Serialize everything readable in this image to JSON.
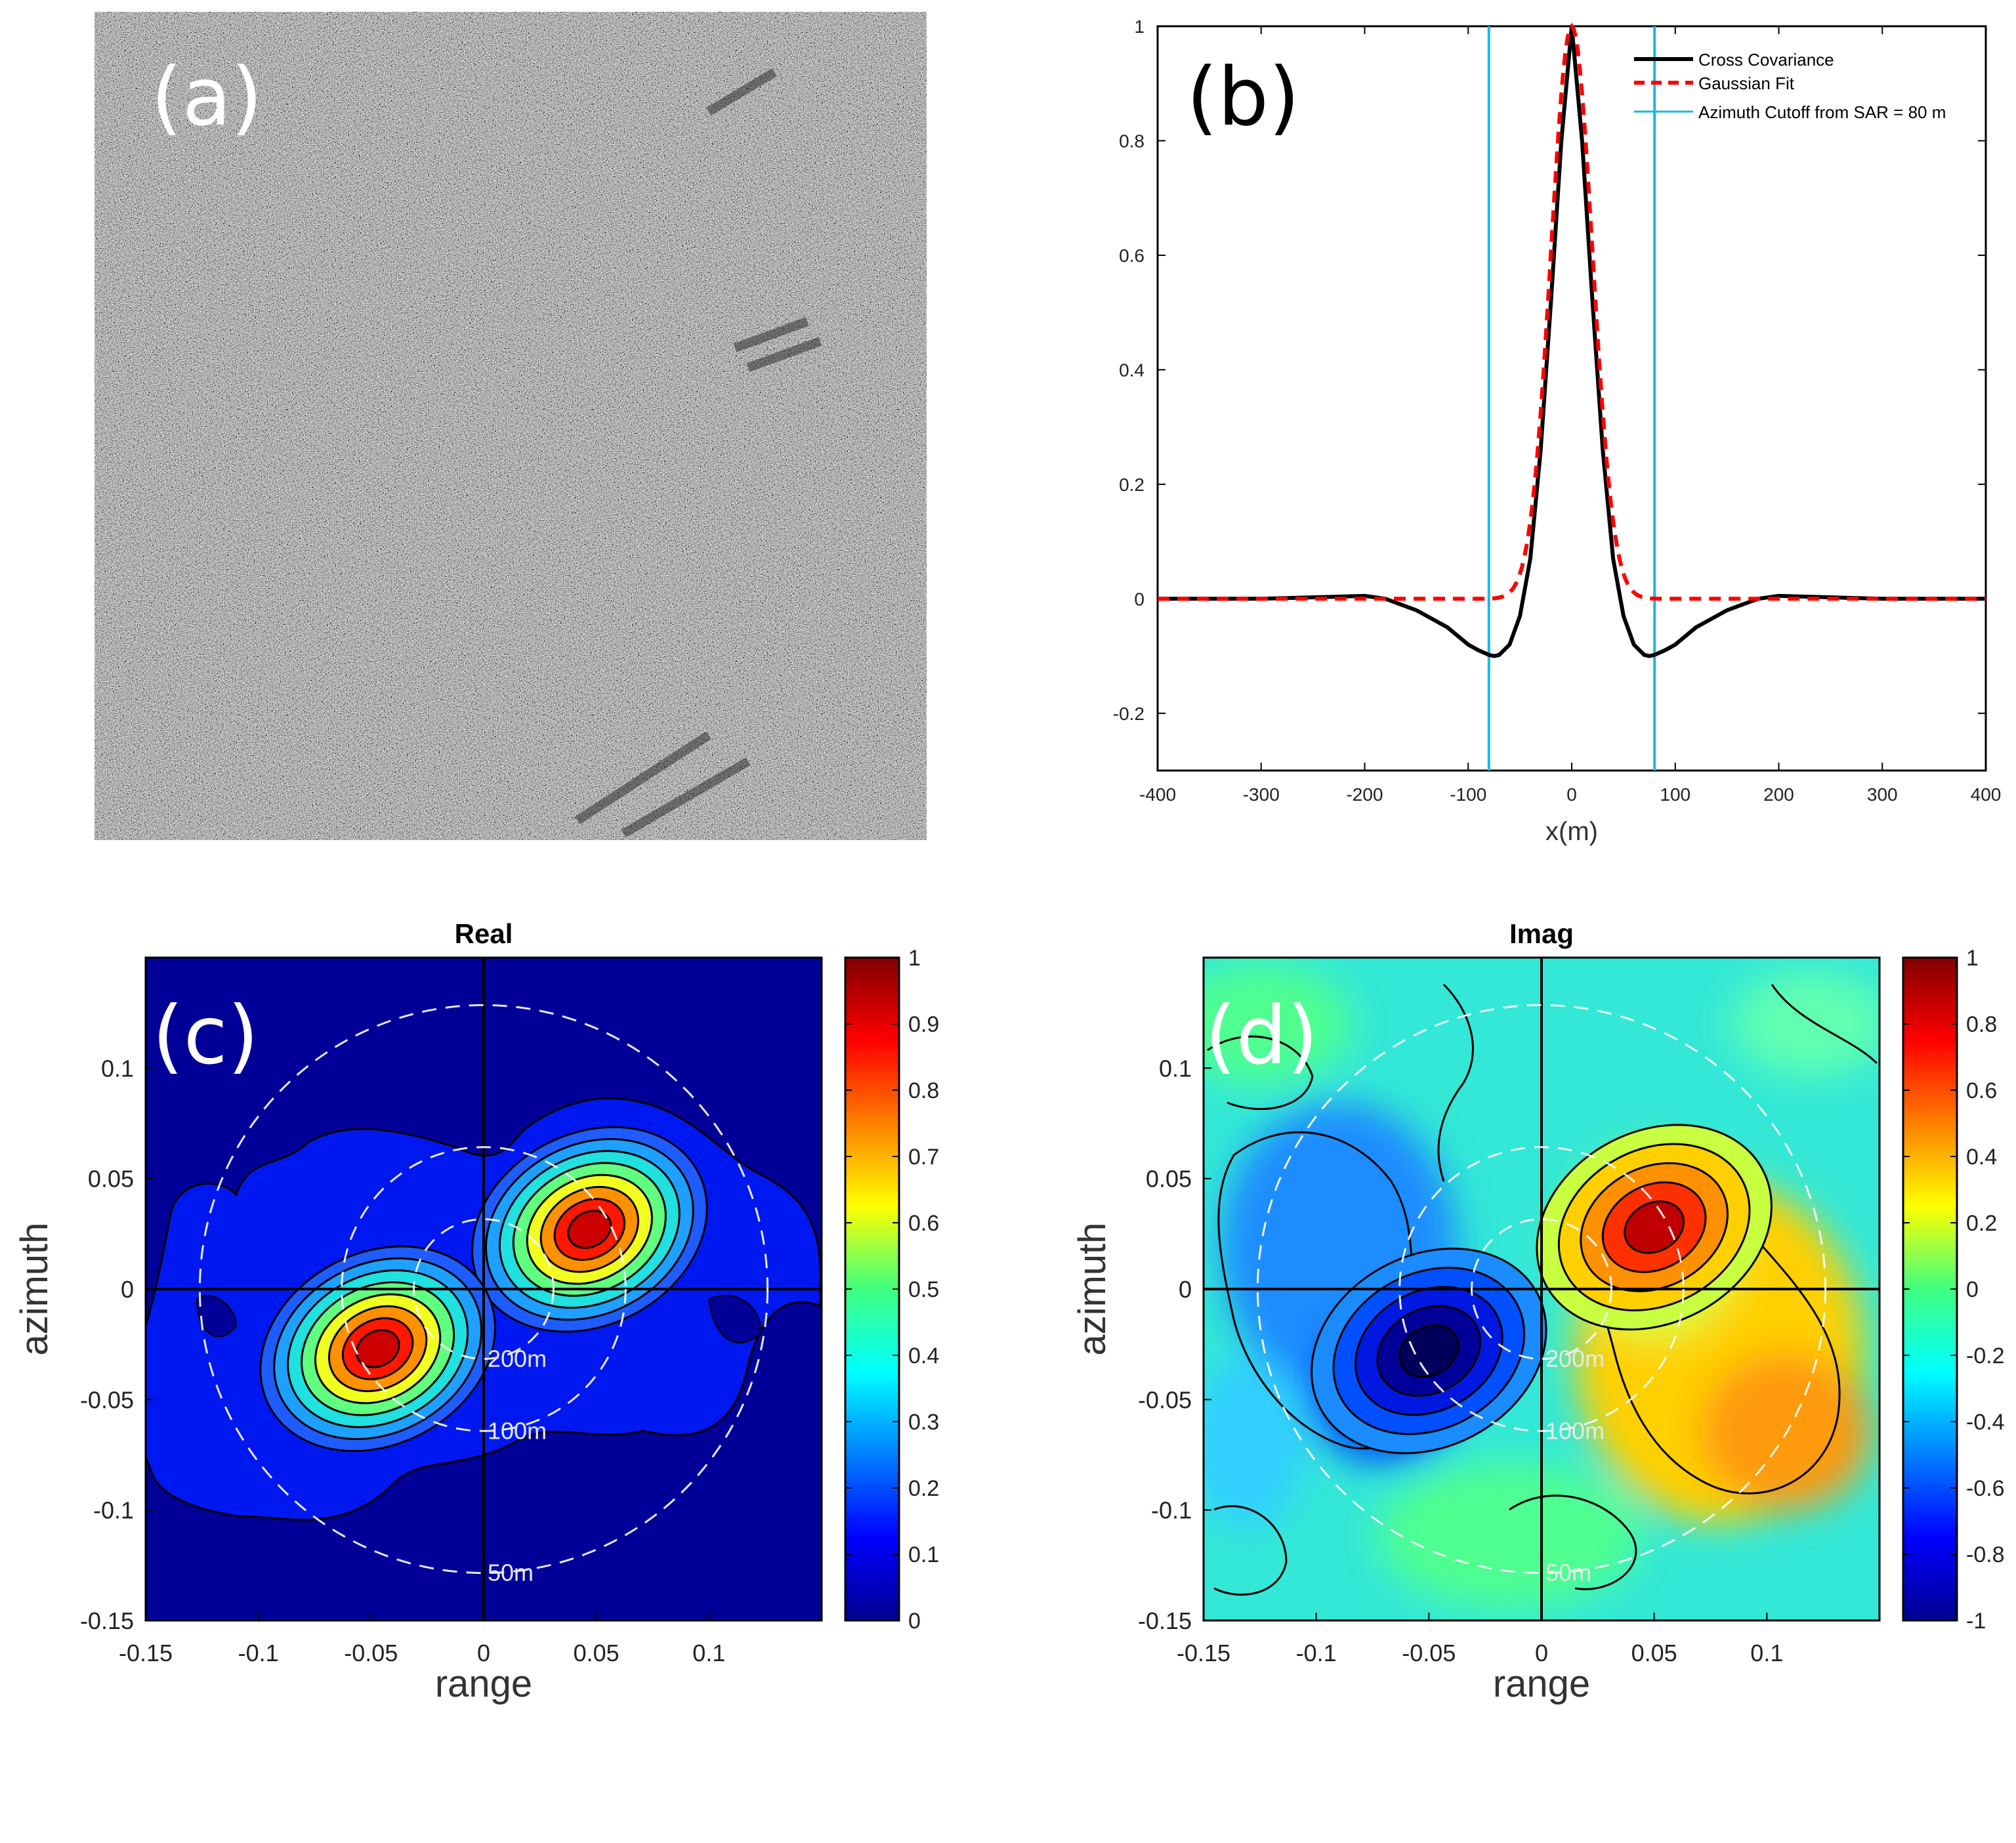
{
  "panels": {
    "a": {
      "label": "(a)"
    },
    "b": {
      "label": "(b)"
    },
    "c": {
      "label": "(c)"
    },
    "d": {
      "label": "(d)"
    }
  },
  "colors": {
    "sar_bg": "#3a3a3a",
    "line_black": "#000000",
    "gauss_red": "#ff0000",
    "cutoff_cyan": "#18b8e8",
    "jet_dark_blue": "#00008f",
    "panel_c_bg": "#000099",
    "panel_d_bg": "#33e8d6"
  },
  "chart_data": [
    {
      "panel": "b",
      "type": "line",
      "xlabel": "x(m)",
      "ylabel": "",
      "xlim": [
        -400,
        400
      ],
      "ylim": [
        -0.3,
        1.0
      ],
      "xticks": [
        -400,
        -300,
        -200,
        -100,
        0,
        100,
        200,
        300,
        400
      ],
      "yticks": [
        -0.2,
        0,
        0.2,
        0.4,
        0.6,
        0.8,
        1
      ],
      "xtick_labels": [
        "-400",
        "-300",
        "-200",
        "-100",
        "0",
        "100",
        "200",
        "300",
        "400"
      ],
      "ytick_labels": [
        "-0.2",
        "0",
        "0.2",
        "0.4",
        "0.6",
        "0.8",
        "1"
      ],
      "legend_position": "top-right",
      "series": [
        {
          "name": "Cross Covariance",
          "style": "solid",
          "color": "#000000",
          "x": [
            -400,
            -300,
            -200,
            -180,
            -150,
            -120,
            -100,
            -90,
            -80,
            -75,
            -70,
            -60,
            -50,
            -40,
            -30,
            -20,
            -10,
            0,
            10,
            20,
            30,
            40,
            50,
            60,
            70,
            75,
            80,
            90,
            100,
            120,
            150,
            180,
            200,
            300,
            400
          ],
          "y": [
            0.0,
            0.0,
            0.005,
            0.0,
            -0.02,
            -0.05,
            -0.08,
            -0.09,
            -0.098,
            -0.1,
            -0.098,
            -0.08,
            -0.03,
            0.07,
            0.26,
            0.52,
            0.8,
            1.0,
            0.8,
            0.52,
            0.26,
            0.07,
            -0.03,
            -0.08,
            -0.098,
            -0.1,
            -0.098,
            -0.09,
            -0.08,
            -0.05,
            -0.02,
            0.0,
            0.005,
            0.0,
            0.0
          ]
        },
        {
          "name": "Gaussian Fit",
          "style": "dashed",
          "color": "#ff0000",
          "sigma_m": 20
        },
        {
          "name": "Azimuth Cutoff from SAR = 80 m",
          "style": "vertical",
          "color": "#18b8e8",
          "x_values": [
            -80,
            80
          ]
        }
      ]
    },
    {
      "panel": "c",
      "type": "heatmap",
      "title": "Real",
      "xlabel": "range",
      "ylabel": "azimuth",
      "xlim": [
        -0.15,
        0.15
      ],
      "ylim": [
        -0.15,
        0.15
      ],
      "xticks": [
        -0.15,
        -0.1,
        -0.05,
        0,
        0.05,
        0.1
      ],
      "yticks": [
        -0.15,
        -0.1,
        -0.05,
        0,
        0.05,
        0.1
      ],
      "xtick_labels": [
        "-0.15",
        "-0.1",
        "-0.05",
        "0",
        "0.05",
        "0.1"
      ],
      "ytick_labels": [
        "-0.15",
        "-0.1",
        "-0.05",
        "0",
        "0.05",
        "0.1"
      ],
      "colorbar": {
        "range": [
          0,
          1
        ],
        "ticks": [
          0,
          0.1,
          0.2,
          0.3,
          0.4,
          0.5,
          0.6,
          0.7,
          0.8,
          0.9,
          1
        ],
        "tick_labels": [
          "0",
          "0.1",
          "0.2",
          "0.3",
          "0.4",
          "0.5",
          "0.6",
          "0.7",
          "0.8",
          "0.9",
          "1"
        ]
      },
      "peaks": [
        {
          "range": 0.047,
          "azimuth": 0.027,
          "value": 1.0
        },
        {
          "range": -0.047,
          "azimuth": -0.027,
          "value": 1.0
        }
      ],
      "wavelength_circles": [
        {
          "label": "200m",
          "radius": 0.031
        },
        {
          "label": "100m",
          "radius": 0.063
        },
        {
          "label": "50m",
          "radius": 0.126
        }
      ]
    },
    {
      "panel": "d",
      "type": "heatmap",
      "title": "Imag",
      "xlabel": "range",
      "ylabel": "azimuth",
      "xlim": [
        -0.15,
        0.15
      ],
      "ylim": [
        -0.15,
        0.15
      ],
      "xticks": [
        -0.15,
        -0.1,
        -0.05,
        0,
        0.05,
        0.1
      ],
      "yticks": [
        -0.15,
        -0.1,
        -0.05,
        0,
        0.05,
        0.1
      ],
      "xtick_labels": [
        "-0.15",
        "-0.1",
        "-0.05",
        "0",
        "0.05",
        "0.1"
      ],
      "ytick_labels": [
        "-0.15",
        "-0.1",
        "-0.05",
        "0",
        "0.05",
        "0.1"
      ],
      "colorbar": {
        "range": [
          -1,
          1
        ],
        "ticks": [
          -1,
          -0.8,
          -0.6,
          -0.4,
          -0.2,
          0,
          0.2,
          0.4,
          0.6,
          0.8,
          1
        ],
        "tick_labels": [
          "-1",
          "-0.8",
          "-0.6",
          "-0.4",
          "-0.2",
          "0",
          "0.2",
          "0.4",
          "0.6",
          "0.8",
          "1"
        ]
      },
      "peaks": [
        {
          "range": 0.05,
          "azimuth": 0.028,
          "value": 0.9
        },
        {
          "range": -0.05,
          "azimuth": -0.028,
          "value": -0.9
        }
      ],
      "wavelength_circles": [
        {
          "label": "200m",
          "radius": 0.031
        },
        {
          "label": "100m",
          "radius": 0.063
        },
        {
          "label": "50m",
          "radius": 0.126
        }
      ]
    }
  ]
}
